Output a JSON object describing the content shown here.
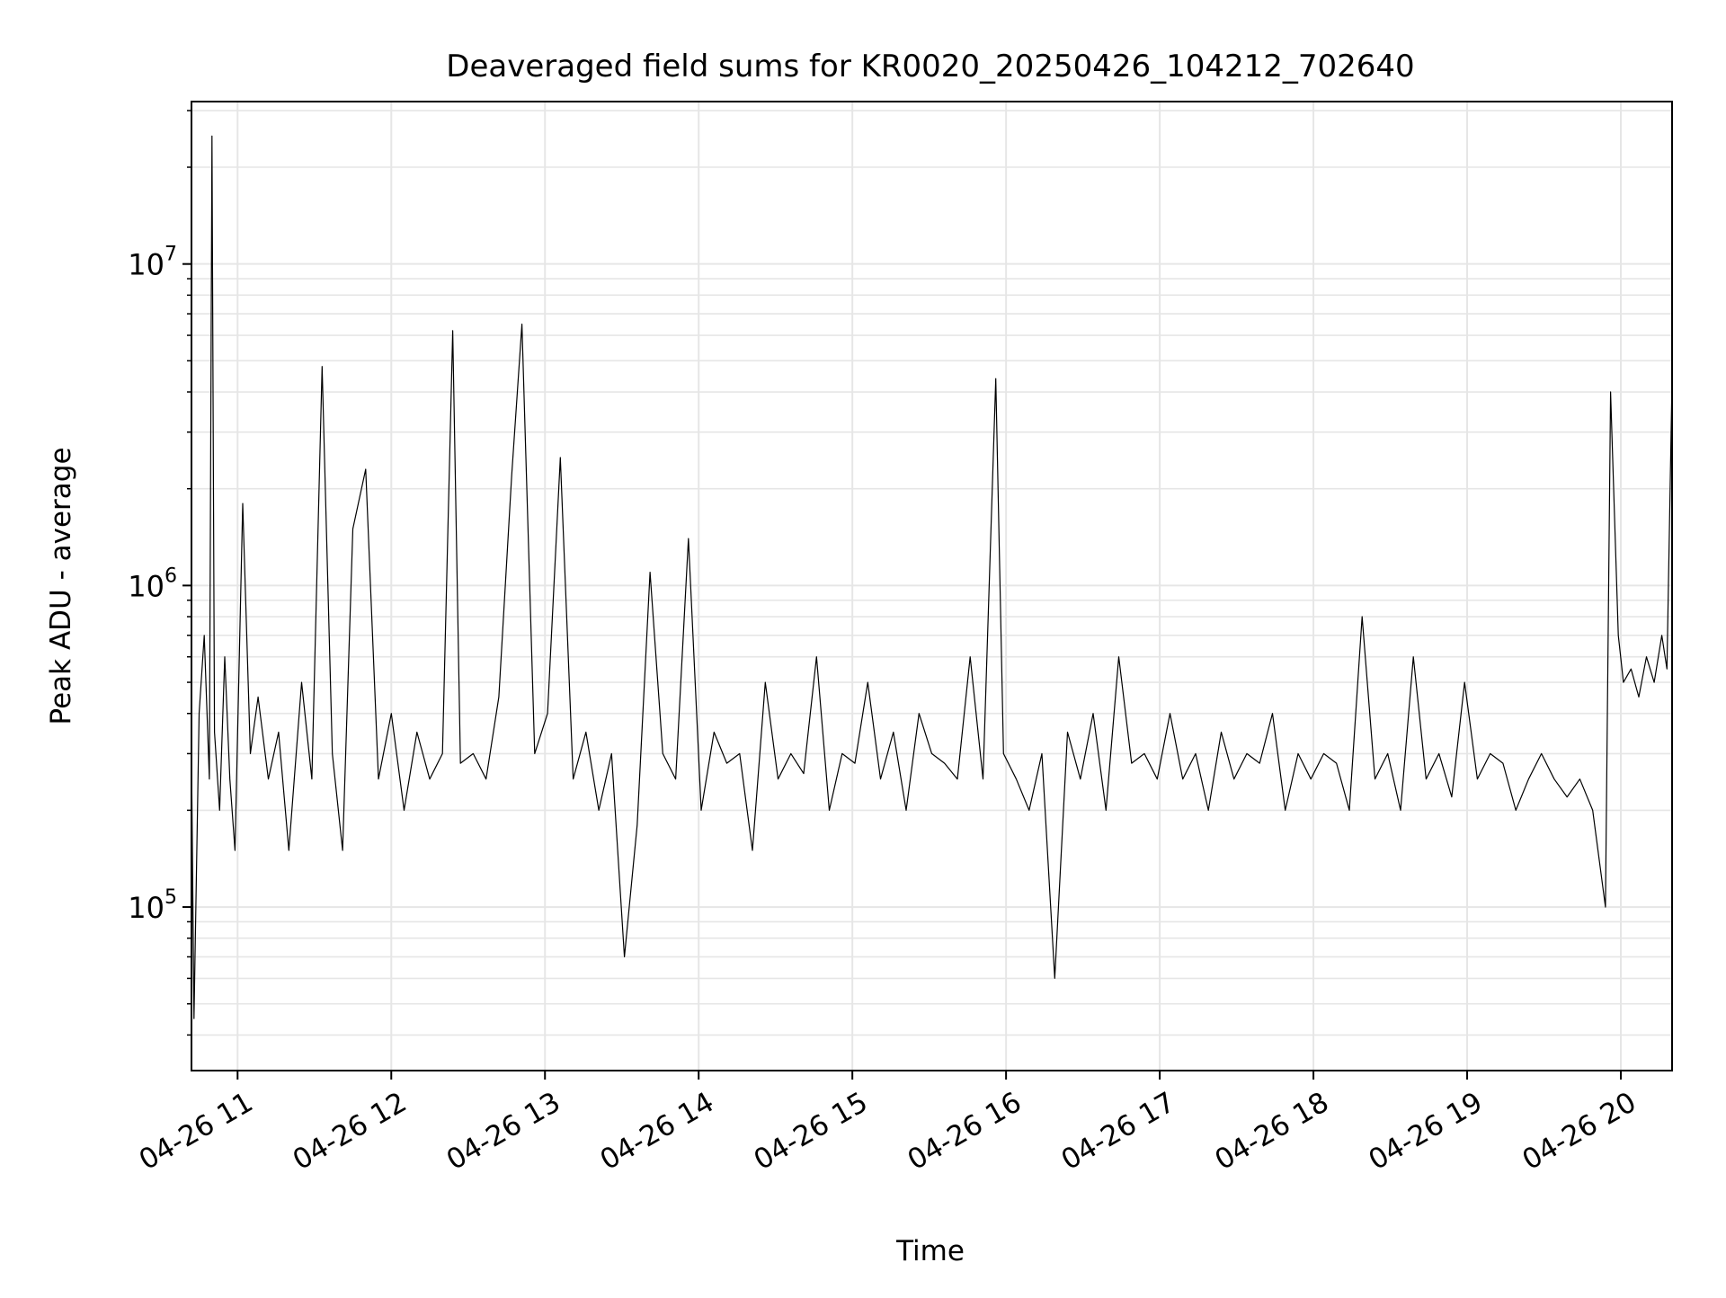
{
  "chart_data": {
    "type": "line",
    "title": "Deaveraged field sums for KR0020_20250426_104212_702640",
    "xlabel": "Time",
    "ylabel": "Peak ADU - average",
    "yscale": "log",
    "grid": true,
    "grid_minor": true,
    "line_color": "#000000",
    "grid_color": "#e6e6e6",
    "xlim": [
      "2025-04-26 10:42",
      "2025-04-26 20:20"
    ],
    "ylim": [
      31000,
      32000000
    ],
    "x_ticks": [
      {
        "value": "2025-04-26 11:00",
        "label": "04-26 11"
      },
      {
        "value": "2025-04-26 12:00",
        "label": "04-26 12"
      },
      {
        "value": "2025-04-26 13:00",
        "label": "04-26 13"
      },
      {
        "value": "2025-04-26 14:00",
        "label": "04-26 14"
      },
      {
        "value": "2025-04-26 15:00",
        "label": "04-26 15"
      },
      {
        "value": "2025-04-26 16:00",
        "label": "04-26 16"
      },
      {
        "value": "2025-04-26 17:00",
        "label": "04-26 17"
      },
      {
        "value": "2025-04-26 18:00",
        "label": "04-26 18"
      },
      {
        "value": "2025-04-26 19:00",
        "label": "04-26 19"
      },
      {
        "value": "2025-04-26 20:00",
        "label": "04-26 20"
      }
    ],
    "y_ticks": [
      {
        "value": 100000,
        "base": "10",
        "exp": "5"
      },
      {
        "value": 1000000,
        "base": "10",
        "exp": "6"
      },
      {
        "value": 10000000,
        "base": "10",
        "exp": "7"
      }
    ],
    "series": [
      {
        "x": [
          "2025-04-26 10:42",
          "2025-04-26 10:43",
          "2025-04-26 10:45",
          "2025-04-26 10:47",
          "2025-04-26 10:49",
          "2025-04-26 10:50",
          "2025-04-26 10:51",
          "2025-04-26 10:53",
          "2025-04-26 10:55",
          "2025-04-26 10:57",
          "2025-04-26 10:59",
          "2025-04-26 11:02",
          "2025-04-26 11:05",
          "2025-04-26 11:08",
          "2025-04-26 11:12",
          "2025-04-26 11:16",
          "2025-04-26 11:20",
          "2025-04-26 11:25",
          "2025-04-26 11:29",
          "2025-04-26 11:33",
          "2025-04-26 11:37",
          "2025-04-26 11:41",
          "2025-04-26 11:45",
          "2025-04-26 11:50",
          "2025-04-26 11:55",
          "2025-04-26 12:00",
          "2025-04-26 12:05",
          "2025-04-26 12:10",
          "2025-04-26 12:15",
          "2025-04-26 12:20",
          "2025-04-26 12:24",
          "2025-04-26 12:27",
          "2025-04-26 12:32",
          "2025-04-26 12:37",
          "2025-04-26 12:42",
          "2025-04-26 12:47",
          "2025-04-26 12:51",
          "2025-04-26 12:56",
          "2025-04-26 13:01",
          "2025-04-26 13:06",
          "2025-04-26 13:11",
          "2025-04-26 13:16",
          "2025-04-26 13:21",
          "2025-04-26 13:26",
          "2025-04-26 13:31",
          "2025-04-26 13:36",
          "2025-04-26 13:41",
          "2025-04-26 13:46",
          "2025-04-26 13:51",
          "2025-04-26 13:56",
          "2025-04-26 14:01",
          "2025-04-26 14:06",
          "2025-04-26 14:11",
          "2025-04-26 14:16",
          "2025-04-26 14:21",
          "2025-04-26 14:26",
          "2025-04-26 14:31",
          "2025-04-26 14:36",
          "2025-04-26 14:41",
          "2025-04-26 14:46",
          "2025-04-26 14:51",
          "2025-04-26 14:56",
          "2025-04-26 15:01",
          "2025-04-26 15:06",
          "2025-04-26 15:11",
          "2025-04-26 15:16",
          "2025-04-26 15:21",
          "2025-04-26 15:26",
          "2025-04-26 15:31",
          "2025-04-26 15:36",
          "2025-04-26 15:41",
          "2025-04-26 15:46",
          "2025-04-26 15:51",
          "2025-04-26 15:56",
          "2025-04-26 15:59",
          "2025-04-26 16:04",
          "2025-04-26 16:09",
          "2025-04-26 16:14",
          "2025-04-26 16:19",
          "2025-04-26 16:24",
          "2025-04-26 16:29",
          "2025-04-26 16:34",
          "2025-04-26 16:39",
          "2025-04-26 16:44",
          "2025-04-26 16:49",
          "2025-04-26 16:54",
          "2025-04-26 16:59",
          "2025-04-26 17:04",
          "2025-04-26 17:09",
          "2025-04-26 17:14",
          "2025-04-26 17:19",
          "2025-04-26 17:24",
          "2025-04-26 17:29",
          "2025-04-26 17:34",
          "2025-04-26 17:39",
          "2025-04-26 17:44",
          "2025-04-26 17:49",
          "2025-04-26 17:54",
          "2025-04-26 17:59",
          "2025-04-26 18:04",
          "2025-04-26 18:09",
          "2025-04-26 18:14",
          "2025-04-26 18:19",
          "2025-04-26 18:24",
          "2025-04-26 18:29",
          "2025-04-26 18:34",
          "2025-04-26 18:39",
          "2025-04-26 18:44",
          "2025-04-26 18:49",
          "2025-04-26 18:54",
          "2025-04-26 18:59",
          "2025-04-26 19:04",
          "2025-04-26 19:09",
          "2025-04-26 19:14",
          "2025-04-26 19:19",
          "2025-04-26 19:24",
          "2025-04-26 19:29",
          "2025-04-26 19:34",
          "2025-04-26 19:39",
          "2025-04-26 19:44",
          "2025-04-26 19:49",
          "2025-04-26 19:54",
          "2025-04-26 19:56",
          "2025-04-26 19:59",
          "2025-04-26 20:01",
          "2025-04-26 20:04",
          "2025-04-26 20:07",
          "2025-04-26 20:10",
          "2025-04-26 20:13",
          "2025-04-26 20:16",
          "2025-04-26 20:18",
          "2025-04-26 20:20"
        ],
        "y": [
          300000,
          45000,
          400000,
          700000,
          250000,
          25000000,
          350000,
          200000,
          600000,
          250000,
          150000,
          1800000,
          300000,
          450000,
          250000,
          350000,
          150000,
          500000,
          250000,
          4800000,
          300000,
          150000,
          1500000,
          2300000,
          250000,
          400000,
          200000,
          350000,
          250000,
          300000,
          6200000,
          280000,
          300000,
          250000,
          450000,
          2200000,
          6500000,
          300000,
          400000,
          2500000,
          250000,
          350000,
          200000,
          300000,
          70000,
          180000,
          1100000,
          300000,
          250000,
          1400000,
          200000,
          350000,
          280000,
          300000,
          150000,
          500000,
          250000,
          300000,
          260000,
          600000,
          200000,
          300000,
          280000,
          500000,
          250000,
          350000,
          200000,
          400000,
          300000,
          280000,
          250000,
          600000,
          250000,
          4400000,
          300000,
          250000,
          200000,
          300000,
          60000,
          350000,
          250000,
          400000,
          200000,
          600000,
          280000,
          300000,
          250000,
          400000,
          250000,
          300000,
          200000,
          350000,
          250000,
          300000,
          280000,
          400000,
          200000,
          300000,
          250000,
          300000,
          280000,
          200000,
          800000,
          250000,
          300000,
          200000,
          600000,
          250000,
          300000,
          220000,
          500000,
          250000,
          300000,
          280000,
          200000,
          250000,
          300000,
          250000,
          220000,
          250000,
          200000,
          100000,
          4000000,
          700000,
          500000,
          550000,
          450000,
          600000,
          500000,
          700000,
          550000,
          4400000
        ]
      }
    ]
  }
}
